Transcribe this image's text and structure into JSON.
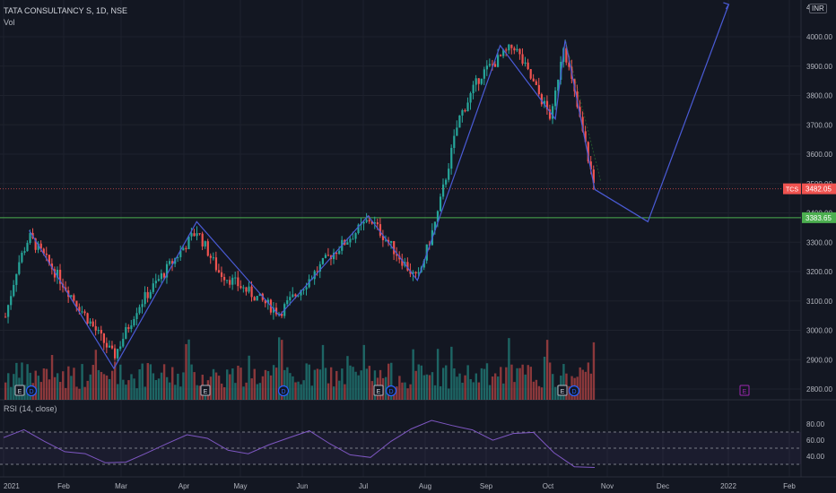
{
  "header": {
    "title": "TATA CONSULTANCY S, 1D, NSE",
    "volume_label": "Vol"
  },
  "rsi": {
    "label": "RSI (14, close)",
    "ticks": [
      "80.00",
      "60.00",
      "40.00"
    ]
  },
  "currency": "INR",
  "price_axis": {
    "top_partial": "4",
    "ticks": [
      "4000.00",
      "3900.00",
      "3800.00",
      "3700.00",
      "3600.00",
      "3500.00",
      "3400.00",
      "3300.00",
      "3200.00",
      "3100.00",
      "3000.00",
      "2900.00",
      "2800.00"
    ]
  },
  "price_tags": {
    "symbol": "TCS",
    "last": "3482.05",
    "level": "3383.65"
  },
  "time_axis": [
    "2021",
    "Feb",
    "Mar",
    "Apr",
    "May",
    "Jun",
    "Jul",
    "Aug",
    "Sep",
    "Oct",
    "Nov",
    "Dec",
    "2022",
    "Feb"
  ],
  "event_markers": [
    "E",
    "D",
    "E",
    "D",
    "E",
    "D",
    "E",
    "D",
    "E"
  ],
  "colors": {
    "bg": "#131722",
    "up": "#26a69a",
    "down": "#ef5350",
    "pattern": "#4a5bd6",
    "level": "#4caf50",
    "rsi": "#7e57c2"
  },
  "chart_data": {
    "type": "candlestick",
    "symbol": "TCS",
    "exchange": "NSE",
    "interval": "1D",
    "last_price": 3482.05,
    "horizontal_level": 3383.65,
    "price_range": [
      2770,
      4110
    ],
    "price_path_points": [
      {
        "date": "2021-01-01",
        "close": 3020
      },
      {
        "date": "2021-01-08",
        "close": 3220
      },
      {
        "date": "2021-01-14",
        "close": 3320
      },
      {
        "date": "2021-01-29",
        "close": 3180
      },
      {
        "date": "2021-02-26",
        "close": 2910
      },
      {
        "date": "2021-03-10",
        "close": 3080
      },
      {
        "date": "2021-04-09",
        "close": 3340
      },
      {
        "date": "2021-04-20",
        "close": 3200
      },
      {
        "date": "2021-05-21",
        "close": 3060
      },
      {
        "date": "2021-06-15",
        "close": 3250
      },
      {
        "date": "2021-07-06",
        "close": 3380
      },
      {
        "date": "2021-07-30",
        "close": 3170
      },
      {
        "date": "2021-08-09",
        "close": 3390
      },
      {
        "date": "2021-08-20",
        "close": 3720
      },
      {
        "date": "2021-08-31",
        "close": 3870
      },
      {
        "date": "2021-09-17",
        "close": 3970
      },
      {
        "date": "2021-10-06",
        "close": 3720
      },
      {
        "date": "2021-10-12",
        "close": 3980
      },
      {
        "date": "2021-10-28",
        "close": 3482
      }
    ],
    "pattern_lines": [
      {
        "points": [
          [
            "2021-01-14",
            3340
          ],
          [
            "2021-02-26",
            2870
          ],
          [
            "2021-04-09",
            3370
          ],
          [
            "2021-05-21",
            3050
          ],
          [
            "2021-07-05",
            3390
          ],
          [
            "2021-07-30",
            3170
          ],
          [
            "2021-09-10",
            3970
          ],
          [
            "2021-10-08",
            3720
          ],
          [
            "2021-10-13",
            3990
          ],
          [
            "2021-10-28",
            3480
          ]
        ]
      },
      {
        "points": [
          [
            "2021-10-28",
            3480
          ],
          [
            "2021-11-24",
            3370
          ],
          [
            "2022-01-04",
            4110
          ]
        ]
      }
    ],
    "rsi": {
      "levels": [
        70,
        50,
        30
      ],
      "series": [
        65,
        72,
        60,
        48,
        42,
        30,
        35,
        45,
        58,
        66,
        60,
        48,
        46,
        52,
        64,
        70,
        55,
        44,
        40,
        58,
        75,
        82,
        80,
        74,
        62,
        66,
        70,
        45,
        30,
        28
      ]
    }
  }
}
